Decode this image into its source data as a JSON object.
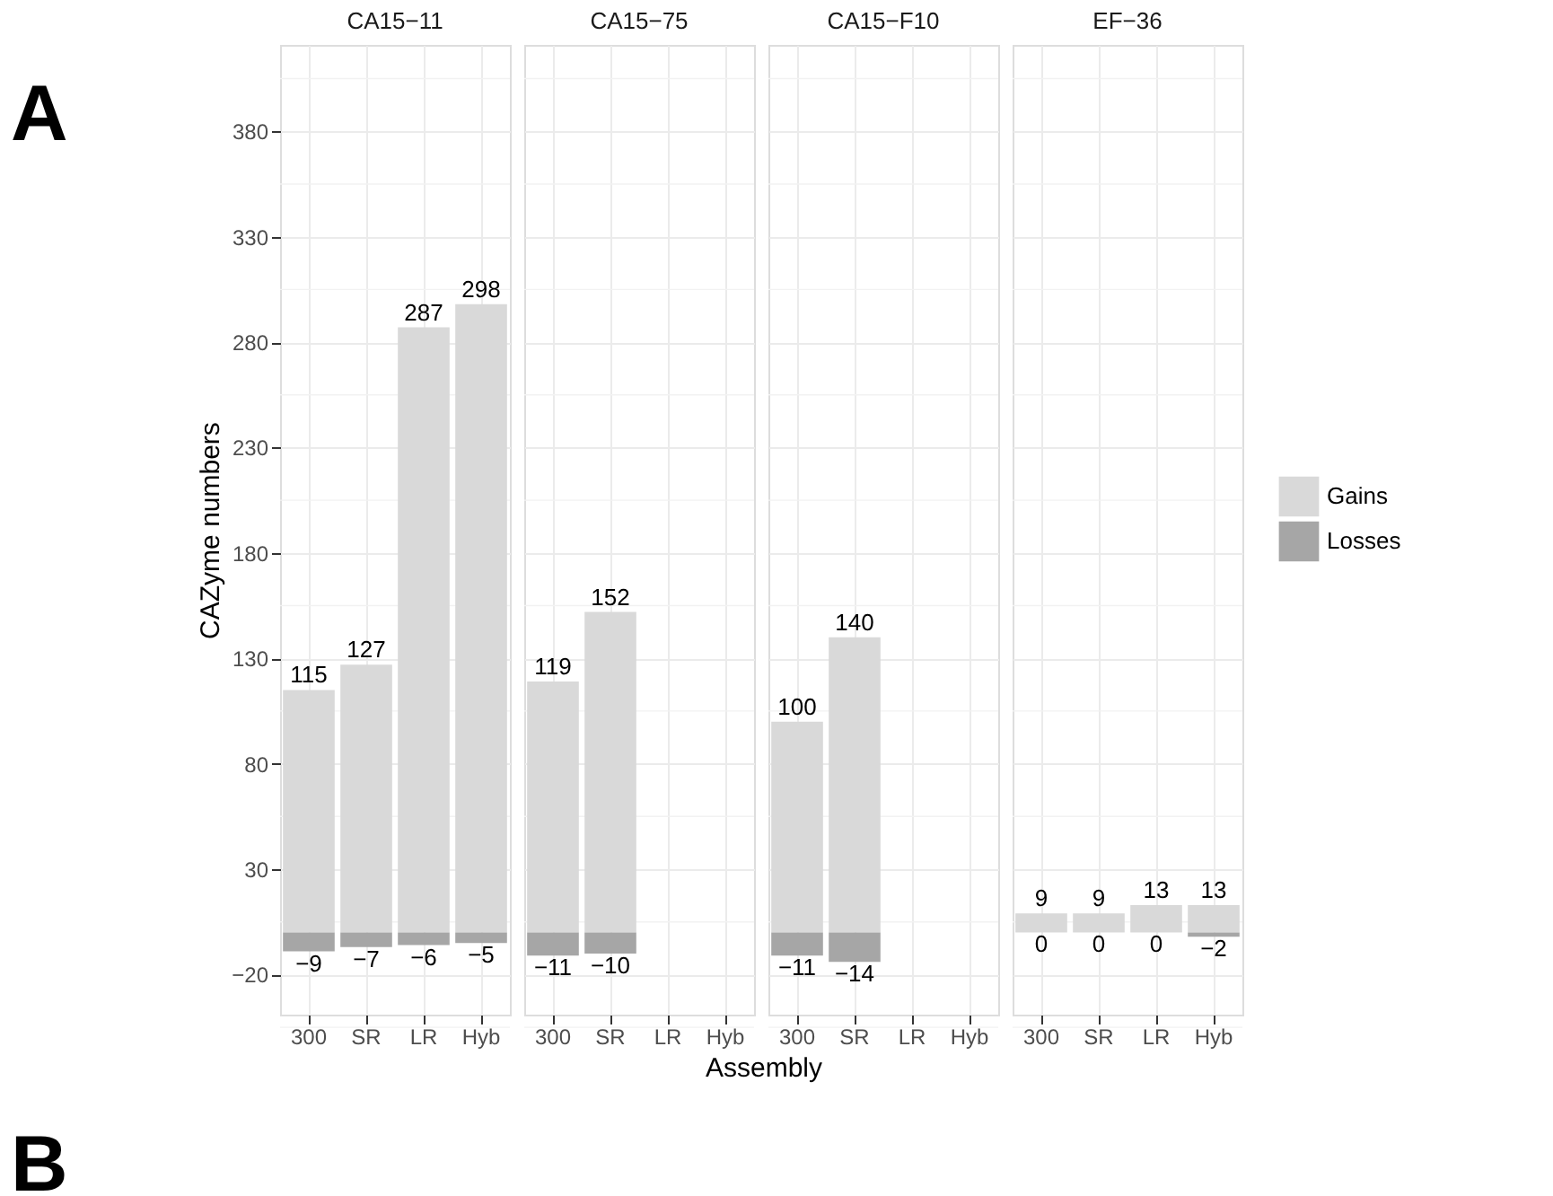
{
  "chart_data": [
    {
      "type": "bar",
      "title": "CA15−11",
      "ylabel": "CAZyme numbers",
      "categories": [
        "300",
        "SR",
        "LR",
        "Hyb"
      ],
      "legend": "right",
      "stacked": true,
      "data_labels": true,
      "grid": true,
      "tick_labels": "xy",
      "ylim": [
        -39,
        421
      ],
      "yticks": [
        -20,
        30,
        80,
        130,
        180,
        230,
        280,
        330,
        380
      ],
      "annotations": [
        "A",
        "B"
      ],
      "series": [
        {
          "name": "Gains",
          "color": "#d9d9d9",
          "values": [
            115,
            127,
            287,
            298
          ]
        },
        {
          "name": "Losses",
          "color": "#a6a6a6",
          "values": [
            -9,
            -7,
            -6,
            -5
          ]
        }
      ]
    },
    {
      "type": "bar",
      "title": "CA15−75",
      "xlabel": "Assembly",
      "categories": [
        "300",
        "SR",
        "LR",
        "Hyb"
      ],
      "legend": "right",
      "stacked": true,
      "data_labels": true,
      "grid": true,
      "tick_labels": "x",
      "ylim": [
        -39,
        421
      ],
      "yticks": [
        -20,
        30,
        80,
        130,
        180,
        230,
        280,
        330,
        380
      ],
      "series": [
        {
          "name": "Gains",
          "color": "#d9d9d9",
          "values": [
            119,
            152,
            null,
            null
          ]
        },
        {
          "name": "Losses",
          "color": "#a6a6a6",
          "values": [
            -11,
            -10,
            null,
            null
          ]
        }
      ]
    },
    {
      "type": "bar",
      "title": "CA15−F10",
      "categories": [
        "300",
        "SR",
        "LR",
        "Hyb"
      ],
      "legend": "right",
      "stacked": true,
      "data_labels": true,
      "grid": true,
      "tick_labels": "x",
      "ylim": [
        -39,
        421
      ],
      "yticks": [
        -20,
        30,
        80,
        130,
        180,
        230,
        280,
        330,
        380
      ],
      "series": [
        {
          "name": "Gains",
          "color": "#d9d9d9",
          "values": [
            100,
            140,
            null,
            null
          ]
        },
        {
          "name": "Losses",
          "color": "#a6a6a6",
          "values": [
            -11,
            -14,
            null,
            null
          ]
        }
      ]
    },
    {
      "type": "bar",
      "title": "EF−36",
      "categories": [
        "300",
        "SR",
        "LR",
        "Hyb"
      ],
      "stacked": true,
      "data_labels": true,
      "grid": true,
      "tick_labels": "x",
      "legend": "right",
      "ylim": [
        -39,
        421
      ],
      "yticks": [
        -20,
        30,
        80,
        130,
        180,
        230,
        280,
        330,
        380
      ],
      "series": [
        {
          "name": "Gains",
          "color": "#d9d9d9",
          "values": [
            9,
            9,
            13,
            13
          ]
        },
        {
          "name": "Losses",
          "color": "#a6a6a6",
          "values": [
            0,
            0,
            0,
            -2
          ]
        }
      ]
    }
  ]
}
